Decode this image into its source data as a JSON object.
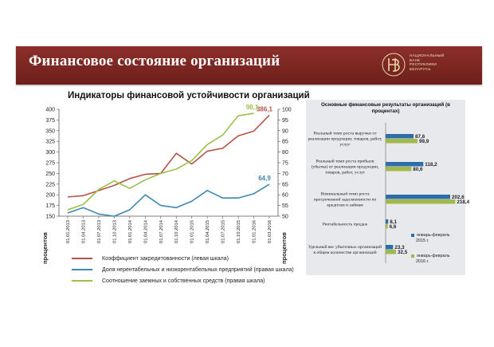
{
  "header": {
    "title": "Финансовое состояние организаций",
    "logo_text": [
      "Национальный",
      "банк",
      "Республики",
      "Беларусь"
    ]
  },
  "colors": {
    "banner": "#7d2824",
    "red_series": "#b5524a",
    "blue_series": "#3f88b0",
    "green_series": "#9bc04a",
    "bar_2015": "#2e6ea8",
    "bar_2016": "#a3b84a"
  },
  "chart_data": [
    {
      "type": "line",
      "title": "Индикаторы финансовой устойчивости организаций",
      "ylabel": "процентов",
      "ylabel_right": "процентов",
      "x": [
        "01.01.2013",
        "01.04.2013",
        "01.07.2013",
        "01.10.2013",
        "01.01.2014",
        "01.04.2014",
        "01.07.2014",
        "01.10.2014",
        "01.01.2015",
        "01.04.2015",
        "01.07.2015",
        "01.10.2015",
        "01.01.2016",
        "01.03.2016"
      ],
      "ylim": [
        150,
        400
      ],
      "yticks": [
        150,
        175,
        200,
        225,
        250,
        275,
        300,
        325,
        350,
        375,
        400
      ],
      "ylim_right": [
        50,
        100
      ],
      "yticks_right": [
        50,
        55,
        60,
        65,
        70,
        75,
        80,
        85,
        90,
        95,
        100
      ],
      "grid": false,
      "legend": "bottom",
      "series": [
        {
          "name": "Коэффициент закредитованности (левая шкала)",
          "axis": "left",
          "color": "#b5524a",
          "values": [
            195,
            198,
            210,
            222,
            238,
            248,
            250,
            297,
            272,
            302,
            309,
            338,
            349,
            386.1
          ],
          "end_label": "386,1"
        },
        {
          "name": "Доля нерентабельных и низкорентабельных предприятий  (правая шкала)",
          "axis": "right",
          "color": "#3f88b0",
          "values": [
            51.5,
            54,
            51,
            50,
            53,
            60,
            55,
            54,
            57,
            62,
            58.5,
            58.5,
            60.5,
            64.9
          ],
          "end_label": "64,9"
        },
        {
          "name": "Соотношение заемных и  собственных средств (правая шкала)",
          "axis": "right",
          "color": "#9bc04a",
          "values": [
            53,
            55.5,
            62.5,
            66.5,
            63,
            67,
            70,
            72,
            76,
            83.5,
            88,
            97,
            98.1,
            null
          ],
          "end_label": "98,1"
        }
      ]
    },
    {
      "type": "bar",
      "title": "Основные финансовые результаты организаций (в процентах)",
      "categories": [
        "Реальный темп роста выручки от реализации продукции, товаров, работ, услуг",
        "Реальный темп роста прибыли (убытка) от реализации продукции, товаров, работ, услуг",
        "Номинальный темп роста просроченной задолженности по кредитам и займам",
        "Рентабельность продаж",
        "Удельный вес убыточных организаций в общем количестве организаций"
      ],
      "category_lines": [
        [
          "Реальный темп роста выручки от",
          "реализации продукции, товаров, работ,",
          "услуг"
        ],
        [
          "Реальный темп роста прибыли",
          "(убытка) от реализации продукции,",
          "товаров, работ, услуг"
        ],
        [
          "Номинальный темп роста",
          "просроченной задолженности по",
          "кредитам и займам"
        ],
        [
          "Рентабельность продаж"
        ],
        [
          "Удельный вес убыточных организаций",
          "в общем количестве организаций"
        ]
      ],
      "series": [
        {
          "name": "январь-февраль 2015 г.",
          "name_lines": [
            "январь-февраль",
            "2015 г."
          ],
          "color": "#2e6ea8",
          "values": [
            87.6,
            118.2,
            202.6,
            8.1,
            23.3
          ],
          "labels": [
            "87,6",
            "118,2",
            "202,6",
            "8,1",
            "23,3"
          ]
        },
        {
          "name": "январь-февраль 2016 г.",
          "name_lines": [
            "январь-февраль",
            "2016 г."
          ],
          "color": "#a3b84a",
          "values": [
            99.9,
            80.6,
            218.4,
            6.6,
            32.5
          ],
          "labels": [
            "99,9",
            "80,6",
            "218,4",
            "6,6",
            "32,5"
          ]
        }
      ],
      "legend": "bottom-right"
    }
  ]
}
